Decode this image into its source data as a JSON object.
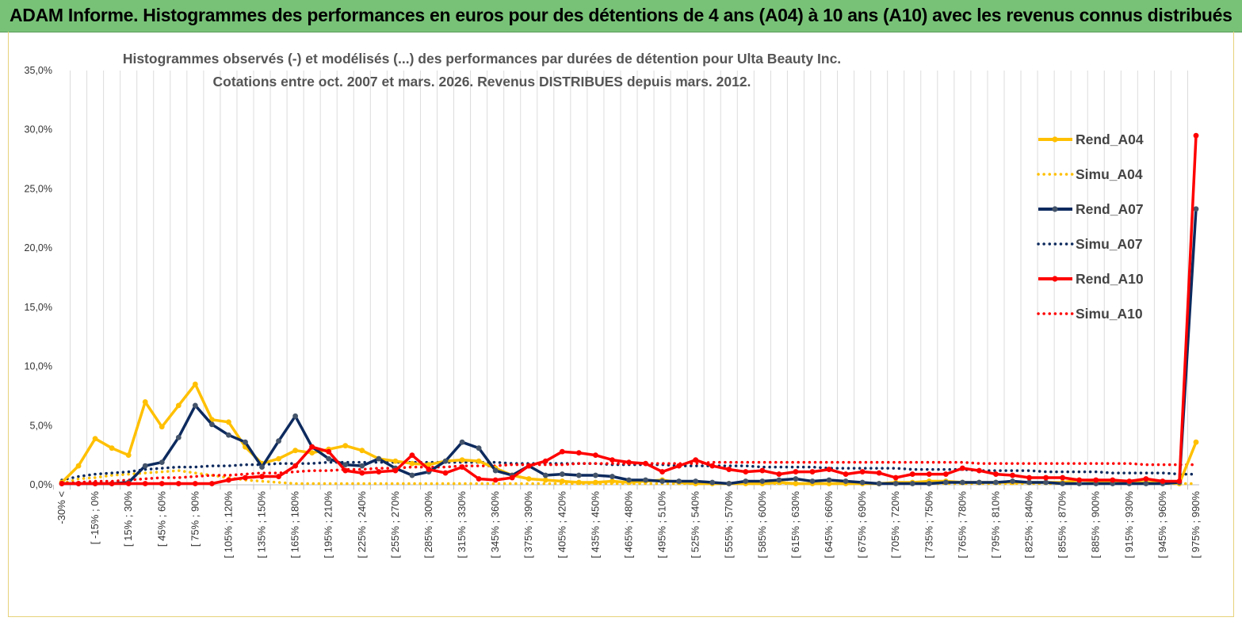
{
  "header": {
    "title": "ADAM Informe. Histogrammes des performances en euros pour des détentions de 4 ans (A04) à 10 ans (A10) avec les revenus connus distribués"
  },
  "chart_data": {
    "type": "line",
    "title": "Histogrammes observés (-) et modélisés (...) des performances par durées de détention pour Ulta Beauty Inc.",
    "subtitle": "Cotations entre oct. 2007 et mars. 2026. Revenus DISTRIBUES depuis mars. 2012.",
    "xlabel": "",
    "ylabel": "",
    "ylim": [
      0,
      35
    ],
    "y_ticks": [
      "0,0%",
      "5,0%",
      "10,0%",
      "15,0%",
      "20,0%",
      "25,0%",
      "30,0%",
      "35,0%"
    ],
    "grid": "vertical",
    "legend_position": "right",
    "x_labels": [
      "-30% <",
      "[ -15% ; 0%",
      "[ 15% ; 30%",
      "[ 45% ; 60%",
      "[ 75% ; 90%",
      "[ 105% ; 120%",
      "[ 135% ; 150%",
      "[ 165% ; 180%",
      "[ 195% ; 210%",
      "[ 225% ; 240%",
      "[ 255% ; 270%",
      "[ 285% ; 300%",
      "[ 315% ; 330%",
      "[ 345% ; 360%",
      "[ 375% ; 390%",
      "[ 405% ; 420%",
      "[ 435% ; 450%",
      "[ 465% ; 480%",
      "[ 495% ; 510%",
      "[ 525% ; 540%",
      "[ 555% ; 570%",
      "[ 585% ; 600%",
      "[ 615% ; 630%",
      "[ 645% ; 660%",
      "[ 675% ; 690%",
      "[ 705% ; 720%",
      "[ 735% ; 750%",
      "[ 765% ; 780%",
      "[ 795% ; 810%",
      "[ 825% ; 840%",
      "[ 855% ; 870%",
      "[ 885% ; 900%",
      "[ 915% ; 930%",
      "[ 945% ; 960%",
      "[ 975% ; 990%"
    ],
    "categories_count": 69,
    "series": [
      {
        "name": "Rend_A04",
        "style": "solid",
        "color": "#FFC000",
        "values": [
          0.2,
          1.6,
          3.9,
          3.1,
          2.5,
          7.0,
          4.9,
          6.7,
          8.5,
          5.5,
          5.3,
          3.2,
          1.8,
          2.2,
          2.9,
          2.7,
          3.0,
          3.3,
          2.9,
          2.2,
          2.0,
          1.8,
          1.7,
          2.0,
          2.1,
          2.0,
          1.4,
          0.8,
          0.5,
          0.4,
          0.3,
          0.2,
          0.2,
          0.3,
          0.2,
          0.3,
          0.4,
          0.2,
          0.1,
          0.1,
          0.1,
          0.1,
          0.1,
          0.2,
          0.1,
          0.1,
          0.1,
          0.1,
          0.1,
          0.1,
          0.2,
          0.2,
          0.3,
          0.3,
          0.2,
          0.2,
          0.2,
          0.2,
          0.2,
          0.2,
          0.2,
          0.4,
          0.3,
          0.2,
          0.2,
          0.2,
          0.2,
          0.1,
          3.6
        ]
      },
      {
        "name": "Simu_A04",
        "style": "dotted",
        "color": "#FFC000",
        "values": [
          0.1,
          0.5,
          0.6,
          0.8,
          0.9,
          1.0,
          1.1,
          1.2,
          1.0,
          0.8,
          0.6,
          0.4,
          0.3,
          0.2,
          0.1,
          0.1,
          0.1,
          0.1,
          0.1,
          0.1,
          0.1,
          0.1,
          0.1,
          0.1,
          0.1,
          0.1,
          0.1,
          0.1,
          0.1,
          0.1,
          0.1,
          0.1,
          0.1,
          0.1,
          0.1,
          0.1,
          0.1,
          0.1,
          0.1,
          0.1,
          0.1,
          0.1,
          0.1,
          0.1,
          0.1,
          0.1,
          0.1,
          0.1,
          0.1,
          0.1,
          0.1,
          0.1,
          0.1,
          0.1,
          0.1,
          0.1,
          0.1,
          0.1,
          0.1,
          0.1,
          0.1,
          0.1,
          0.1,
          0.1,
          0.1,
          0.1,
          0.1,
          0.1,
          0.1
        ]
      },
      {
        "name": "Rend_A07",
        "style": "solid",
        "color": "#0D2A5E",
        "values": [
          0.1,
          0.1,
          0.1,
          0.1,
          0.2,
          1.6,
          1.9,
          4.0,
          6.7,
          5.1,
          4.2,
          3.6,
          1.5,
          3.7,
          5.8,
          3.2,
          2.2,
          1.7,
          1.6,
          2.2,
          1.4,
          0.8,
          1.1,
          2.0,
          3.6,
          3.1,
          1.2,
          0.8,
          1.6,
          0.8,
          0.9,
          0.8,
          0.8,
          0.7,
          0.4,
          0.4,
          0.3,
          0.3,
          0.3,
          0.2,
          0.1,
          0.3,
          0.3,
          0.4,
          0.5,
          0.3,
          0.4,
          0.3,
          0.2,
          0.1,
          0.1,
          0.1,
          0.1,
          0.2,
          0.2,
          0.2,
          0.2,
          0.3,
          0.2,
          0.2,
          0.1,
          0.1,
          0.1,
          0.1,
          0.1,
          0.1,
          0.1,
          0.2,
          23.3
        ]
      },
      {
        "name": "Simu_A07",
        "style": "dotted",
        "color": "#0D2A5E",
        "values": [
          0.4,
          0.7,
          0.9,
          1.0,
          1.1,
          1.3,
          1.4,
          1.5,
          1.5,
          1.6,
          1.6,
          1.7,
          1.7,
          1.8,
          1.8,
          1.8,
          1.9,
          1.9,
          1.9,
          1.9,
          1.9,
          1.9,
          1.9,
          1.9,
          1.9,
          1.9,
          1.9,
          1.8,
          1.8,
          1.8,
          1.8,
          1.8,
          1.8,
          1.7,
          1.7,
          1.7,
          1.7,
          1.6,
          1.6,
          1.6,
          1.6,
          1.6,
          1.5,
          1.5,
          1.5,
          1.5,
          1.4,
          1.4,
          1.4,
          1.4,
          1.4,
          1.3,
          1.3,
          1.3,
          1.3,
          1.2,
          1.2,
          1.2,
          1.2,
          1.1,
          1.1,
          1.1,
          1.1,
          1.0,
          1.0,
          1.0,
          1.0,
          0.9,
          0.9
        ]
      },
      {
        "name": "Rend_A10",
        "style": "solid",
        "color": "#FF0000",
        "values": [
          0.1,
          0.1,
          0.1,
          0.1,
          0.1,
          0.1,
          0.1,
          0.1,
          0.1,
          0.1,
          0.4,
          0.6,
          0.7,
          0.7,
          1.6,
          3.2,
          2.8,
          1.2,
          1.0,
          1.1,
          1.2,
          2.5,
          1.3,
          1.0,
          1.5,
          0.5,
          0.4,
          0.6,
          1.6,
          2.0,
          2.8,
          2.7,
          2.5,
          2.1,
          1.9,
          1.8,
          1.1,
          1.6,
          2.1,
          1.6,
          1.3,
          1.1,
          1.2,
          0.9,
          1.1,
          1.1,
          1.3,
          0.9,
          1.1,
          1.0,
          0.6,
          0.9,
          0.9,
          0.9,
          1.4,
          1.2,
          0.9,
          0.8,
          0.6,
          0.6,
          0.6,
          0.4,
          0.4,
          0.4,
          0.3,
          0.5,
          0.3,
          0.3,
          29.5
        ]
      },
      {
        "name": "Simu_A10",
        "style": "dotted",
        "color": "#FF0000",
        "values": [
          0.1,
          0.2,
          0.3,
          0.3,
          0.4,
          0.5,
          0.6,
          0.6,
          0.7,
          0.8,
          0.8,
          0.9,
          1.0,
          1.0,
          1.1,
          1.2,
          1.2,
          1.3,
          1.3,
          1.4,
          1.4,
          1.5,
          1.5,
          1.5,
          1.6,
          1.6,
          1.6,
          1.7,
          1.7,
          1.7,
          1.7,
          1.8,
          1.8,
          1.8,
          1.8,
          1.8,
          1.8,
          1.8,
          1.8,
          1.9,
          1.9,
          1.9,
          1.9,
          1.9,
          1.9,
          1.9,
          1.9,
          1.9,
          1.9,
          1.9,
          1.9,
          1.9,
          1.9,
          1.9,
          1.9,
          1.8,
          1.8,
          1.8,
          1.8,
          1.8,
          1.8,
          1.8,
          1.8,
          1.8,
          1.8,
          1.7,
          1.7,
          1.7,
          1.7
        ]
      }
    ]
  }
}
